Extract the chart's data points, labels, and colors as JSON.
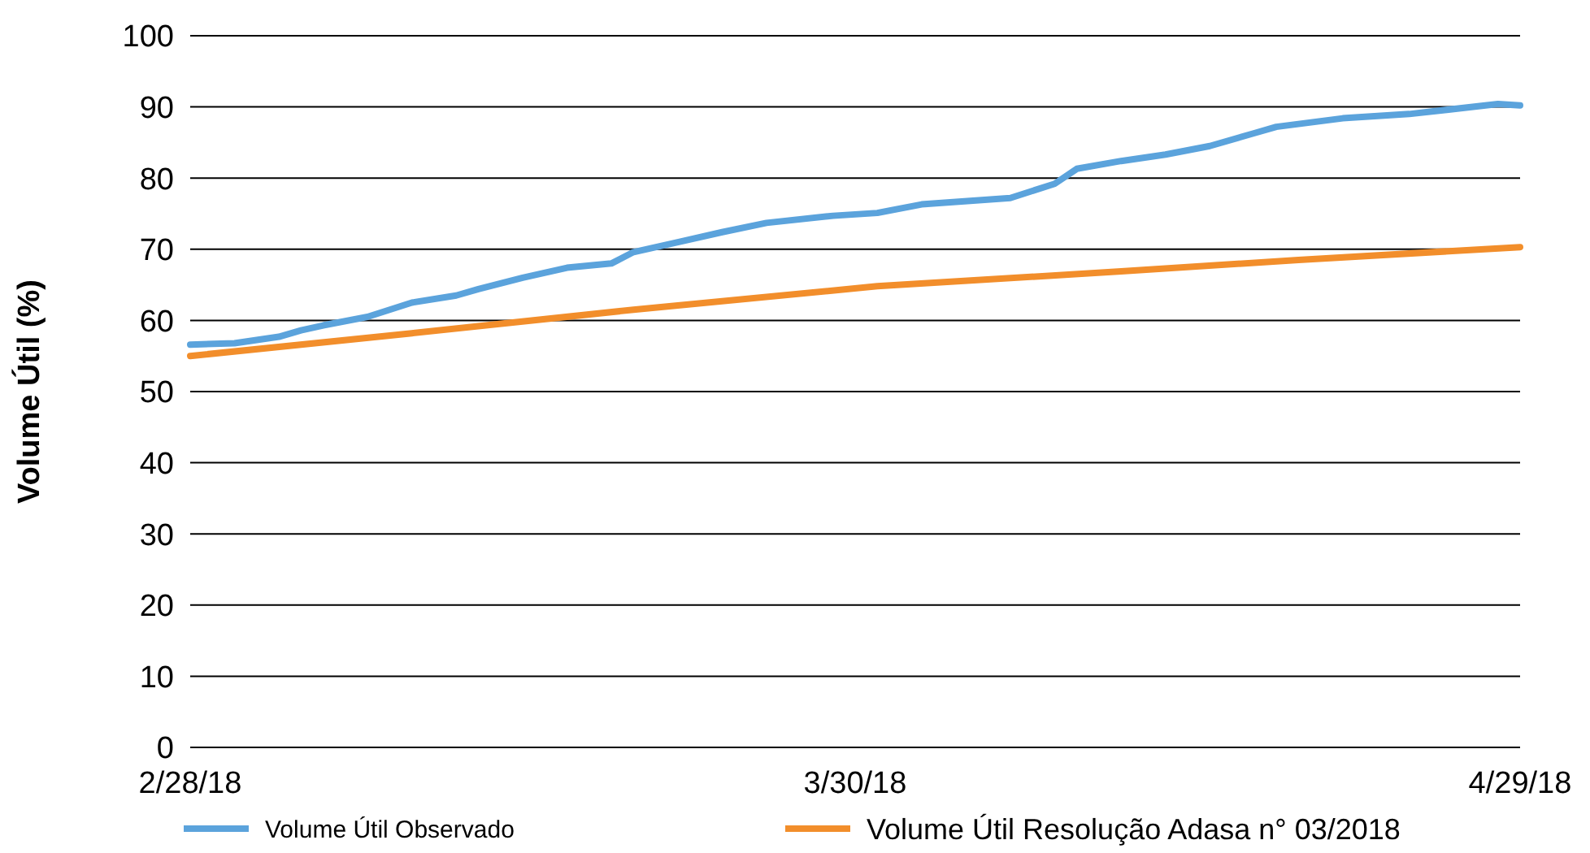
{
  "chart_data": {
    "type": "line",
    "ylabel": "Volume Útil (%)",
    "x": [
      "2018-02-28",
      "2018-03-02",
      "2018-03-04",
      "2018-03-05",
      "2018-03-06",
      "2018-03-08",
      "2018-03-10",
      "2018-03-12",
      "2018-03-13",
      "2018-03-15",
      "2018-03-17",
      "2018-03-19",
      "2018-03-20",
      "2018-03-22",
      "2018-03-24",
      "2018-03-26",
      "2018-03-29",
      "2018-03-31",
      "2018-04-02",
      "2018-04-06",
      "2018-04-08",
      "2018-04-09",
      "2018-04-11",
      "2018-04-13",
      "2018-04-15",
      "2018-04-17",
      "2018-04-18",
      "2018-04-21",
      "2018-04-24",
      "2018-04-28",
      "2018-04-29"
    ],
    "series": [
      {
        "name": "Volume Útil Observado",
        "color": "#5ba3dc",
        "values": [
          56.6,
          56.8,
          57.7,
          58.6,
          59.3,
          60.5,
          62.5,
          63.5,
          64.4,
          66,
          67.4,
          68,
          69.6,
          71,
          72.4,
          73.7,
          74.7,
          75.1,
          76.3,
          77.2,
          79.2,
          81.3,
          82.4,
          83.3,
          84.5,
          86.3,
          87.2,
          88.4,
          89,
          90.4,
          90.2
        ]
      },
      {
        "name": "Volume Útil Resolução Adasa n° 03/2018",
        "color": "#f28e2b",
        "x": [
          "2018-02-28",
          "2018-03-10",
          "2018-03-20",
          "2018-03-31",
          "2018-04-11",
          "2018-04-19",
          "2018-04-29"
        ],
        "values": [
          55,
          58.2,
          61.5,
          64.8,
          66.9,
          68.5,
          70.3
        ]
      }
    ],
    "xlim": [
      "2018-02-28",
      "2018-04-29"
    ],
    "xticks": [
      {
        "value": "2018-02-28",
        "label": "2/28/18"
      },
      {
        "value": "2018-03-30",
        "label": "3/30/18"
      },
      {
        "value": "2018-04-29",
        "label": "4/29/18"
      }
    ],
    "ylim": [
      0,
      100
    ],
    "yticks": [
      0,
      10,
      20,
      30,
      40,
      50,
      60,
      70,
      80,
      90,
      100
    ],
    "grid": "y",
    "legend": "bottom",
    "marker": "none",
    "line_style": "solid"
  }
}
